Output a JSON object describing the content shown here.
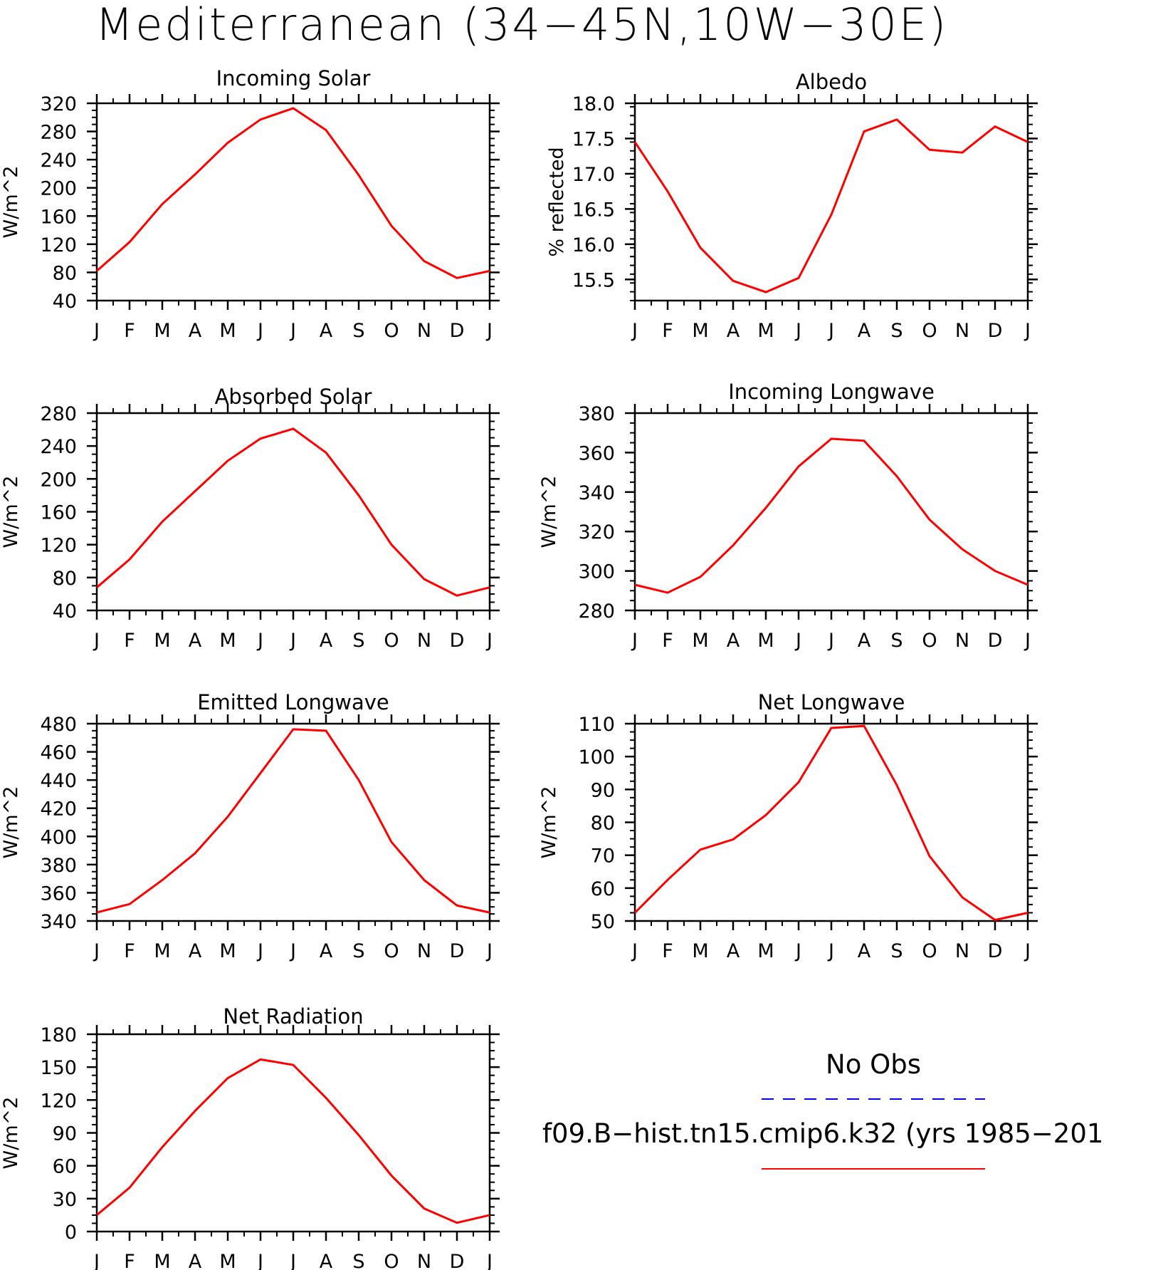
{
  "title": "Mediterranean (34−45N,10W−30E)",
  "colors": {
    "model": "#ff0000",
    "obs": "#0000ff",
    "axis": "#000000"
  },
  "legend": {
    "obs_label": "No Obs",
    "model_label": "f09.B−hist.tn15.cmip6.k32 (yrs 1985−201"
  },
  "chart_data": [
    {
      "type": "line",
      "title": "Incoming Solar",
      "ylabel": "W/m^2",
      "categories": [
        "J",
        "F",
        "M",
        "A",
        "M",
        "J",
        "J",
        "A",
        "S",
        "O",
        "N",
        "D",
        "J"
      ],
      "ylim": [
        40,
        320
      ],
      "yticks": [
        40,
        80,
        120,
        160,
        200,
        240,
        280,
        320
      ],
      "ytick_labels": [
        "40",
        "80",
        "120",
        "160",
        "200",
        "240",
        "280",
        "320"
      ],
      "series": [
        {
          "values": [
            82,
            123,
            177,
            219,
            264,
            297,
            313,
            282,
            218,
            146,
            96,
            72,
            82
          ]
        }
      ]
    },
    {
      "type": "line",
      "title": "Albedo",
      "ylabel": "% reflected",
      "categories": [
        "J",
        "F",
        "M",
        "A",
        "M",
        "J",
        "J",
        "A",
        "S",
        "O",
        "N",
        "D",
        "J"
      ],
      "ylim": [
        15.2,
        18.0
      ],
      "yticks": [
        15.5,
        16.0,
        16.5,
        17.0,
        17.5,
        18.0
      ],
      "ytick_labels": [
        "15.5",
        "16.0",
        "16.5",
        "17.0",
        "17.5",
        "18.0"
      ],
      "series": [
        {
          "values": [
            17.45,
            16.75,
            15.95,
            15.48,
            15.32,
            15.52,
            16.42,
            17.6,
            17.77,
            17.34,
            17.3,
            17.67,
            17.45
          ]
        }
      ]
    },
    {
      "type": "line",
      "title": "Absorbed Solar",
      "ylabel": "W/m^2",
      "categories": [
        "J",
        "F",
        "M",
        "A",
        "M",
        "J",
        "J",
        "A",
        "S",
        "O",
        "N",
        "D",
        "J"
      ],
      "ylim": [
        40,
        280
      ],
      "yticks": [
        40,
        80,
        120,
        160,
        200,
        240,
        280
      ],
      "ytick_labels": [
        "40",
        "80",
        "120",
        "160",
        "200",
        "240",
        "280"
      ],
      "series": [
        {
          "values": [
            68,
            102,
            148,
            185,
            222,
            249,
            261,
            232,
            180,
            120,
            78,
            58,
            68
          ]
        }
      ]
    },
    {
      "type": "line",
      "title": "Incoming Longwave",
      "ylabel": "W/m^2",
      "categories": [
        "J",
        "F",
        "M",
        "A",
        "M",
        "J",
        "J",
        "A",
        "S",
        "O",
        "N",
        "D",
        "J"
      ],
      "ylim": [
        280,
        380
      ],
      "yticks": [
        280,
        300,
        320,
        340,
        360,
        380
      ],
      "ytick_labels": [
        "280",
        "300",
        "320",
        "340",
        "360",
        "380"
      ],
      "series": [
        {
          "values": [
            293,
            289,
            297,
            313,
            332,
            353,
            367,
            366,
            348,
            326,
            311,
            300,
            293
          ]
        }
      ]
    },
    {
      "type": "line",
      "title": "Emitted Longwave",
      "ylabel": "W/m^2",
      "categories": [
        "J",
        "F",
        "M",
        "A",
        "M",
        "J",
        "J",
        "A",
        "S",
        "O",
        "N",
        "D",
        "J"
      ],
      "ylim": [
        340,
        480
      ],
      "yticks": [
        340,
        360,
        380,
        400,
        420,
        440,
        460,
        480
      ],
      "ytick_labels": [
        "340",
        "360",
        "380",
        "400",
        "420",
        "440",
        "460",
        "480"
      ],
      "series": [
        {
          "values": [
            346,
            352,
            369,
            388,
            414,
            445,
            476,
            475,
            440,
            396,
            369,
            351,
            346
          ]
        }
      ]
    },
    {
      "type": "line",
      "title": "Net Longwave",
      "ylabel": "W/m^2",
      "categories": [
        "J",
        "F",
        "M",
        "A",
        "M",
        "J",
        "J",
        "A",
        "S",
        "O",
        "N",
        "D",
        "J"
      ],
      "ylim": [
        50,
        110
      ],
      "yticks": [
        50,
        60,
        70,
        80,
        90,
        100,
        110
      ],
      "ytick_labels": [
        "50",
        "60",
        "70",
        "80",
        "90",
        "100",
        "110"
      ],
      "series": [
        {
          "values": [
            52.5,
            62.5,
            71.7,
            74.8,
            82.2,
            92.2,
            108.7,
            109.3,
            91.3,
            69.7,
            57.2,
            50.3,
            52.5
          ]
        }
      ]
    },
    {
      "type": "line",
      "title": "Net Radiation",
      "ylabel": "W/m^2",
      "categories": [
        "J",
        "F",
        "M",
        "A",
        "M",
        "J",
        "J",
        "A",
        "S",
        "O",
        "N",
        "D",
        "J"
      ],
      "ylim": [
        0,
        180
      ],
      "yticks": [
        0,
        30,
        60,
        90,
        120,
        150,
        180
      ],
      "ytick_labels": [
        "0",
        "30",
        "60",
        "90",
        "120",
        "150",
        "180"
      ],
      "series": [
        {
          "values": [
            15,
            40,
            77,
            110,
            140,
            157,
            152,
            122,
            88,
            51,
            21,
            8,
            15
          ]
        }
      ]
    }
  ]
}
